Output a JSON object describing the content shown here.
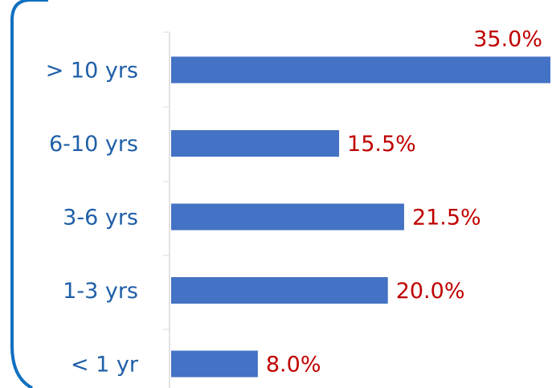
{
  "chart_data": {
    "type": "bar",
    "orientation": "horizontal",
    "categories": [
      "> 10 yrs",
      "6-10 yrs",
      "3-6 yrs",
      "1-3 yrs",
      "< 1 yr"
    ],
    "values": [
      35,
      15.5,
      21.5,
      20,
      8
    ],
    "value_labels": [
      "35.0%",
      "15.5%",
      "21.5%",
      "20.0%",
      "8.0%"
    ],
    "color": "#4472c4"
  }
}
